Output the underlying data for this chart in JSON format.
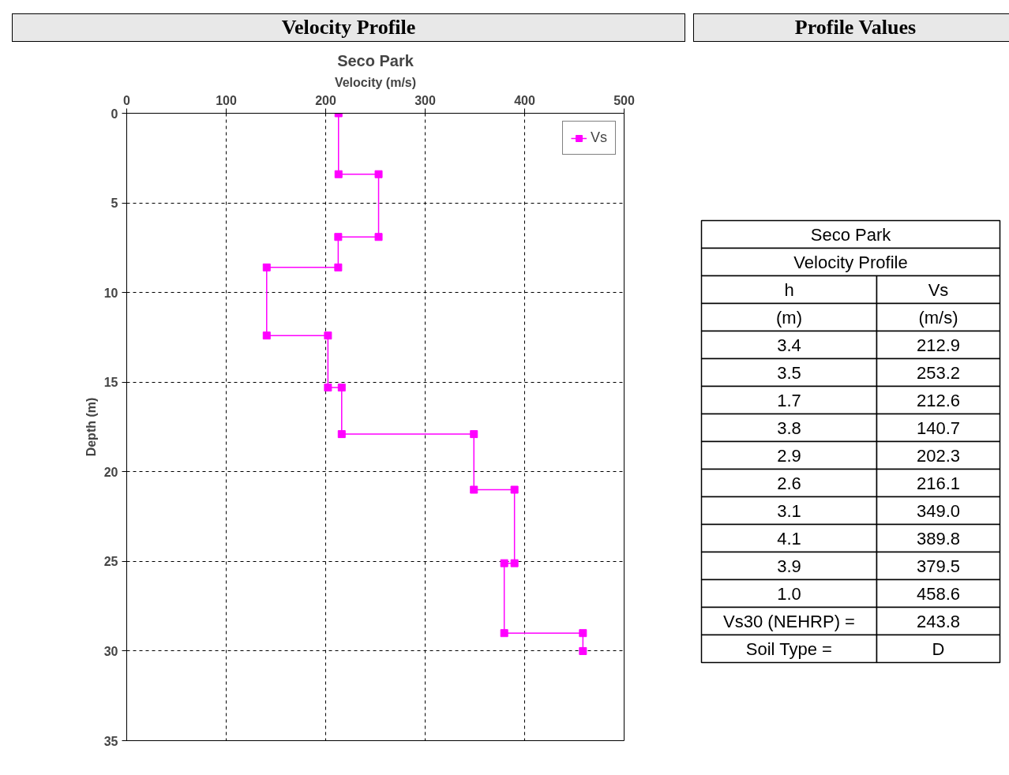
{
  "chart_data": [
    {
      "type": "line",
      "title": "Velocity Profile",
      "subtitle": "Seco Park",
      "xlabel": "Velocity (m/s)",
      "ylabel": "Depth (m)",
      "xlim": [
        0,
        500
      ],
      "xticks": [
        0,
        100,
        200,
        300,
        400,
        500
      ],
      "ylim": [
        35,
        0
      ],
      "yticks": [
        0,
        5,
        10,
        15,
        20,
        25,
        30,
        35
      ],
      "grid": true,
      "legend": "top right",
      "marker": "square",
      "line_style": "solid",
      "series": [
        {
          "name": "Vs",
          "color": "#ff00ff",
          "x": [
            212.9,
            212.9,
            253.2,
            253.2,
            212.6,
            212.6,
            140.7,
            140.7,
            202.3,
            202.3,
            216.1,
            216.1,
            349.0,
            349.0,
            389.8,
            389.8,
            379.5,
            379.5,
            458.6,
            458.6
          ],
          "values": [
            0,
            3.4,
            3.4,
            6.9,
            6.9,
            8.6,
            8.6,
            12.4,
            12.4,
            15.3,
            15.3,
            17.9,
            17.9,
            21.0,
            21.0,
            25.1,
            25.1,
            29.0,
            29.0,
            30.0
          ]
        }
      ]
    },
    {
      "type": "other",
      "title": "Profile Values",
      "annotations": [
        "Seco Park",
        "Velocity Profile",
        "h",
        "Vs",
        "(m)",
        "(m/s)",
        "3.4",
        "212.9",
        "3.5",
        "253.2",
        "1.7",
        "212.6",
        "3.8",
        "140.7",
        "2.9",
        "202.3",
        "2.6",
        "216.1",
        "3.1",
        "349.0",
        "4.1",
        "389.8",
        "3.9",
        "379.5",
        "1.0",
        "458.6",
        "Vs30 (NEHRP) =",
        "243.8",
        "Soil Type =",
        "D"
      ]
    }
  ]
}
